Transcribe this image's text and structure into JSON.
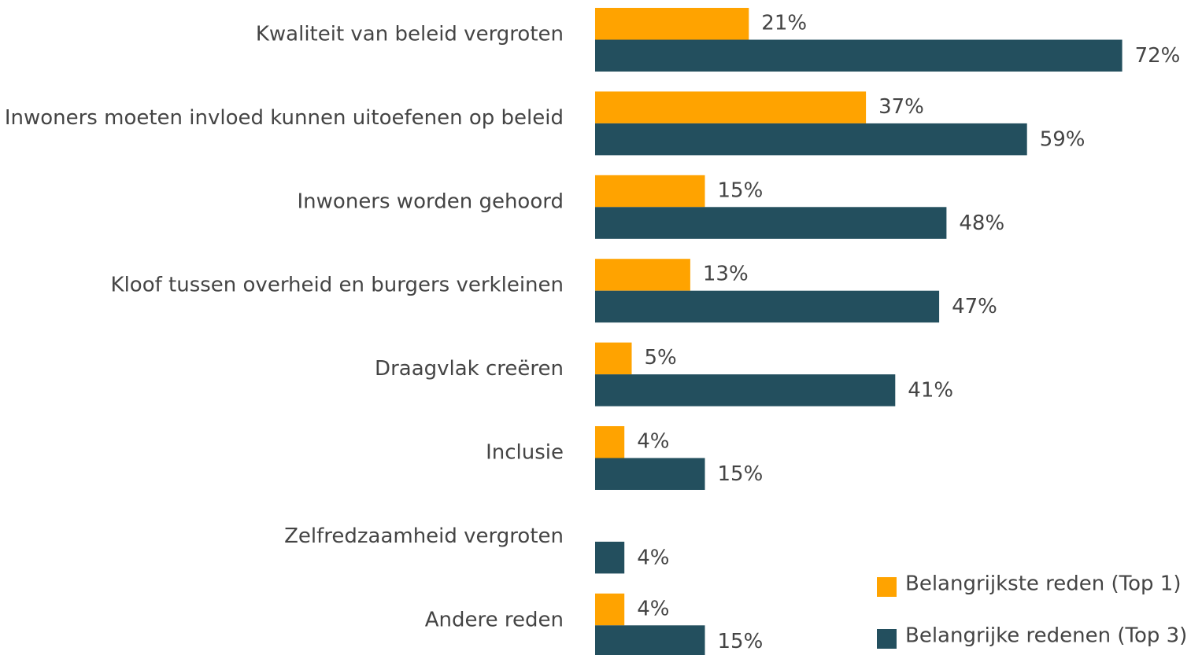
{
  "chart_data": {
    "type": "bar",
    "orientation": "horizontal",
    "categories": [
      "Kwaliteit van beleid vergroten",
      "Inwoners moeten invloed kunnen uitoefenen op beleid",
      "Inwoners worden gehoord",
      "Kloof tussen overheid en burgers verkleinen",
      "Draagvlak creëren",
      "Inclusie",
      "Zelfredzaamheid vergroten",
      "Andere reden"
    ],
    "series": [
      {
        "name": "Belangrijkste reden (Top 1)",
        "color": "#FFA300",
        "values": [
          21,
          37,
          15,
          13,
          5,
          4,
          null,
          4
        ],
        "value_labels": [
          "21%",
          "37%",
          "15%",
          "13%",
          "5%",
          "4%",
          null,
          "4%"
        ]
      },
      {
        "name": "Belangrijke redenen (Top 3)",
        "color": "#234F5E",
        "values": [
          72,
          59,
          48,
          47,
          41,
          15,
          4,
          15
        ],
        "value_labels": [
          "72%",
          "59%",
          "48%",
          "47%",
          "41%",
          "15%",
          "4%",
          "15%"
        ]
      }
    ],
    "legend": "bottom-right"
  }
}
